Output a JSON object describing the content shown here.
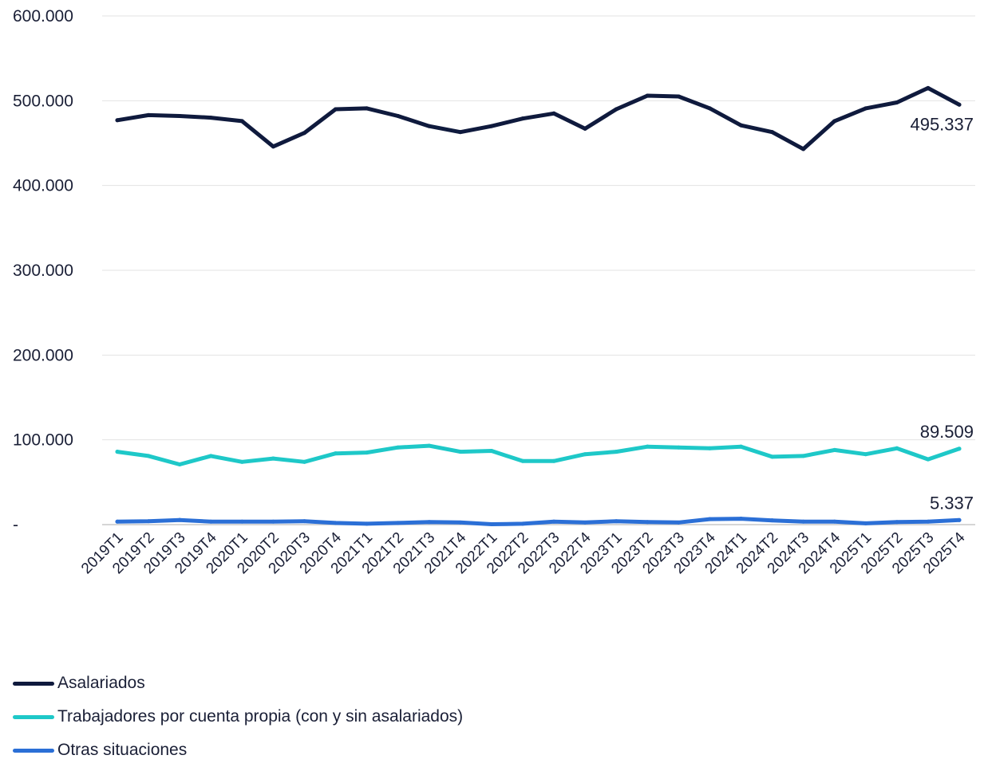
{
  "chart_data": {
    "type": "line",
    "title": "",
    "xlabel": "",
    "ylabel": "",
    "ylim": [
      0,
      600000
    ],
    "yticks": [
      0,
      100000,
      200000,
      300000,
      400000,
      500000,
      600000
    ],
    "ytick_labels": [
      "-",
      "100.000",
      "200.000",
      "300.000",
      "400.000",
      "500.000",
      "600.000"
    ],
    "grid": true,
    "legend_position": "bottom-left",
    "categories": [
      "2019T1",
      "2019T2",
      "2019T3",
      "2019T4",
      "2020T1",
      "2020T2",
      "2020T3",
      "2020T4",
      "2021T1",
      "2021T2",
      "2021T3",
      "2021T4",
      "2022T1",
      "2022T2",
      "2022T3",
      "2022T4",
      "2023T1",
      "2023T2",
      "2023T3",
      "2023T4",
      "2024T1",
      "2024T2",
      "2024T3",
      "2024T4",
      "2025T1",
      "2025T2",
      "2025T3",
      "2025T4"
    ],
    "series": [
      {
        "name": "Asalariados",
        "color": "#0f1a3d",
        "end_label": "495.337",
        "values": [
          477000,
          483000,
          482000,
          480000,
          476000,
          446000,
          462000,
          490000,
          491000,
          482000,
          470000,
          463000,
          470000,
          479000,
          485000,
          467000,
          490000,
          506000,
          505000,
          491000,
          471000,
          463000,
          443000,
          476000,
          491000,
          498000,
          515000,
          495337
        ]
      },
      {
        "name": "Trabajadores por cuenta propia (con y sin asalariados)",
        "color": "#1ec8c8",
        "end_label": "89.509",
        "values": [
          86000,
          81000,
          71000,
          81000,
          74000,
          78000,
          74000,
          84000,
          85000,
          91000,
          93000,
          86000,
          87000,
          75000,
          75000,
          83000,
          86000,
          92000,
          91000,
          90000,
          92000,
          80000,
          81000,
          88000,
          83000,
          90000,
          77000,
          89509
        ]
      },
      {
        "name": "Otras situaciones",
        "color": "#2b6fd6",
        "end_label": "5.337",
        "values": [
          3500,
          4000,
          5500,
          3500,
          3500,
          3500,
          4000,
          2000,
          1000,
          2000,
          3000,
          2500,
          500,
          1000,
          3500,
          2500,
          4000,
          3000,
          2500,
          6500,
          7000,
          5000,
          3500,
          3500,
          1500,
          3000,
          3500,
          5337
        ]
      }
    ]
  }
}
